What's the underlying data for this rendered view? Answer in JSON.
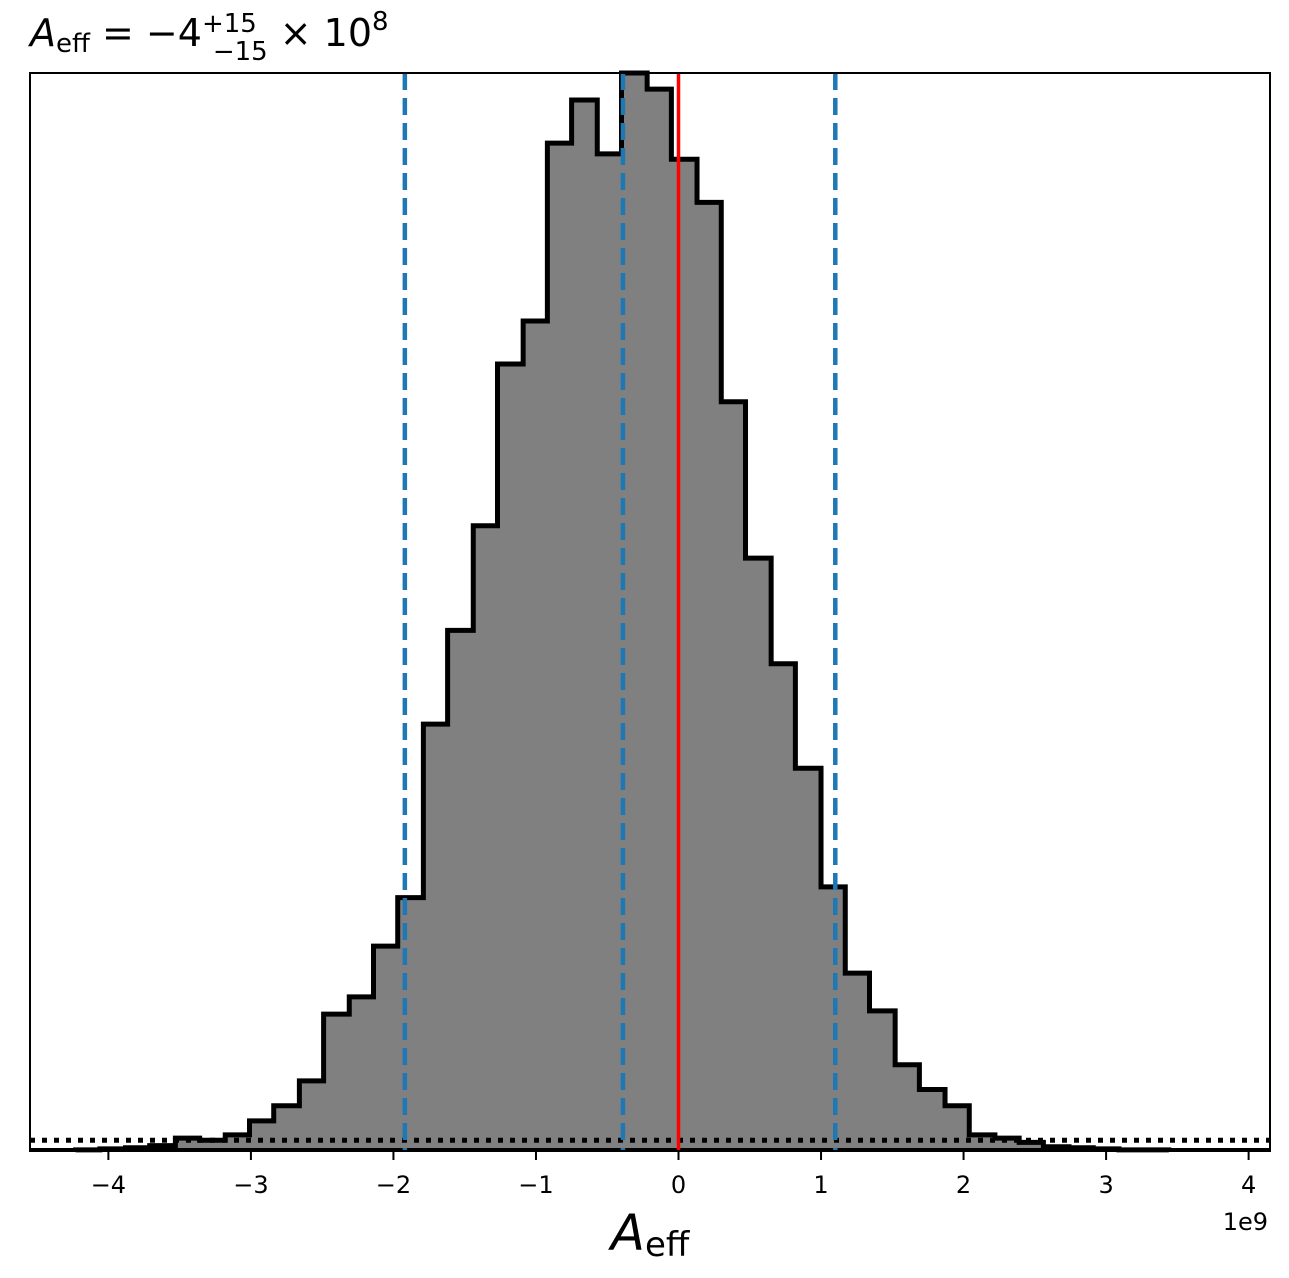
{
  "chart_data": {
    "type": "bar",
    "title": {
      "var_main": "A",
      "var_sub": "eff",
      "equals": " = −4",
      "sup": "+15",
      "sub": "−15",
      "times": " × 10",
      "exp": "8"
    },
    "xlabel": {
      "main": "A",
      "sub": "eff"
    },
    "x_exponent_label": "1e9",
    "xlim": [
      -4.55,
      4.15
    ],
    "ylim": [
      0,
      1000
    ],
    "grid": false,
    "legend": "none",
    "x_ticks": [
      {
        "value": -4,
        "label": "−4"
      },
      {
        "value": -3,
        "label": "−3"
      },
      {
        "value": -2,
        "label": "−2"
      },
      {
        "value": -1,
        "label": "−1"
      },
      {
        "value": 0,
        "label": "0"
      },
      {
        "value": 1,
        "label": "1"
      },
      {
        "value": 2,
        "label": "2"
      },
      {
        "value": 3,
        "label": "3"
      },
      {
        "value": 4,
        "label": "4"
      }
    ],
    "bin_edges": [
      -4.23,
      -4.06,
      -3.88,
      -3.71,
      -3.53,
      -3.36,
      -3.18,
      -3.01,
      -2.84,
      -2.66,
      -2.49,
      -2.31,
      -2.14,
      -1.97,
      -1.79,
      -1.62,
      -1.44,
      -1.27,
      -1.09,
      -0.92,
      -0.75,
      -0.57,
      -0.4,
      -0.22,
      -0.05,
      0.13,
      0.3,
      0.47,
      0.65,
      0.82,
      1.0,
      1.17,
      1.34,
      1.52,
      1.69,
      1.87,
      2.04,
      2.22,
      2.39,
      2.56,
      2.74,
      2.91,
      3.09,
      3.26,
      3.44
    ],
    "counts": [
      1,
      2,
      3,
      5,
      12,
      10,
      15,
      28,
      42,
      65,
      127,
      143,
      190,
      235,
      396,
      483,
      580,
      730,
      770,
      935,
      975,
      925,
      1000,
      985,
      920,
      880,
      695,
      550,
      452,
      355,
      245,
      165,
      130,
      80,
      57,
      42,
      15,
      12,
      8,
      4,
      3,
      2,
      1,
      1
    ],
    "series": [
      {
        "values": [
          1,
          2,
          3,
          5,
          12,
          10,
          15,
          28,
          42,
          65,
          127,
          143,
          190,
          235,
          396,
          483,
          580,
          730,
          770,
          935,
          975,
          925,
          1000,
          985,
          920,
          880,
          695,
          550,
          452,
          355,
          245,
          165,
          130,
          80,
          57,
          42,
          15,
          12,
          8,
          4,
          3,
          2,
          1,
          1
        ]
      }
    ],
    "hist_fill_color": "#808080",
    "hist_edge_color": "#000000",
    "quantile_lines": [
      -1.92,
      -0.39,
      1.1
    ],
    "quantile_color": "#1f77b4",
    "truth_line": 0,
    "truth_color": "#ff0000",
    "dotted_baseline": 10,
    "dotted_color": "#000000"
  }
}
